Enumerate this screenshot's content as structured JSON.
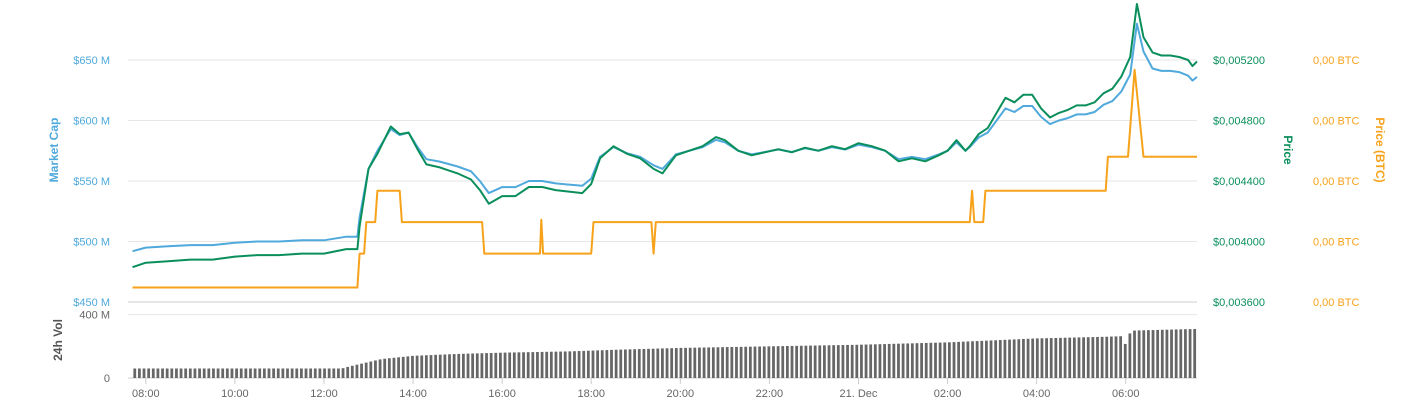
{
  "colors": {
    "market_cap": "#4fa9dc",
    "price_usd": "#0a8f5c",
    "price_btc": "#f7a21b",
    "volume": "#666666",
    "grid": "#e6e6e6",
    "tick_text": "#666666"
  },
  "chart_data": {
    "type": "line",
    "x_axis": {
      "ticks": [
        "08:00",
        "10:00",
        "12:00",
        "14:00",
        "16:00",
        "18:00",
        "20:00",
        "22:00",
        "21. Dec",
        "02:00",
        "04:00",
        "06:00"
      ],
      "tick_hours": [
        8,
        10,
        12,
        14,
        16,
        18,
        20,
        22,
        24,
        26,
        28,
        30
      ],
      "range_hours": [
        7.6,
        31.6
      ]
    },
    "axes": {
      "market_cap": {
        "title": "Market Cap",
        "ticks": [
          "$450 M",
          "$500 M",
          "$550 M",
          "$600 M",
          "$650 M"
        ],
        "tick_values": [
          450,
          500,
          550,
          600,
          650
        ],
        "range": [
          450,
          650
        ]
      },
      "price_usd": {
        "title": "Price",
        "ticks": [
          "$0,003600",
          "$0,004000",
          "$0,004400",
          "$0,004800",
          "$0,005200"
        ],
        "tick_values": [
          0.0036,
          0.004,
          0.0044,
          0.0048,
          0.0052
        ],
        "range": [
          0.0036,
          0.0052
        ]
      },
      "price_btc": {
        "title": "Price (BTC)",
        "ticks": [
          "0,00 BTC",
          "0,00 BTC",
          "0,00 BTC",
          "0,00 BTC",
          "0,00 BTC"
        ],
        "range": [
          0,
          5
        ]
      },
      "volume": {
        "title": "24h Vol",
        "ticks": [
          "0",
          "400 M"
        ],
        "tick_values": [
          0,
          400
        ],
        "range": [
          0,
          600
        ]
      }
    },
    "series": [
      {
        "key": "market_cap",
        "axis": "market_cap",
        "points": [
          [
            7.7,
            492
          ],
          [
            8.0,
            495
          ],
          [
            8.5,
            496
          ],
          [
            9.0,
            497
          ],
          [
            9.5,
            497
          ],
          [
            10.0,
            499
          ],
          [
            10.5,
            500
          ],
          [
            11.0,
            500
          ],
          [
            11.5,
            501
          ],
          [
            12.0,
            501
          ],
          [
            12.5,
            504
          ],
          [
            12.75,
            504
          ],
          [
            12.8,
            520
          ],
          [
            13.0,
            560
          ],
          [
            13.2,
            575
          ],
          [
            13.5,
            593
          ],
          [
            13.7,
            588
          ],
          [
            13.9,
            590
          ],
          [
            14.1,
            578
          ],
          [
            14.3,
            568
          ],
          [
            14.6,
            566
          ],
          [
            15.0,
            562
          ],
          [
            15.3,
            558
          ],
          [
            15.5,
            550
          ],
          [
            15.7,
            540
          ],
          [
            16.0,
            545
          ],
          [
            16.3,
            545
          ],
          [
            16.6,
            550
          ],
          [
            16.9,
            550
          ],
          [
            17.2,
            548
          ],
          [
            17.5,
            547
          ],
          [
            17.8,
            546
          ],
          [
            18.0,
            552
          ],
          [
            18.2,
            570
          ],
          [
            18.5,
            578
          ],
          [
            18.8,
            573
          ],
          [
            19.1,
            570
          ],
          [
            19.4,
            563
          ],
          [
            19.6,
            560
          ],
          [
            19.9,
            572
          ],
          [
            20.2,
            575
          ],
          [
            20.5,
            578
          ],
          [
            20.8,
            584
          ],
          [
            21.0,
            582
          ],
          [
            21.3,
            575
          ],
          [
            21.6,
            572
          ],
          [
            21.9,
            574
          ],
          [
            22.2,
            576
          ],
          [
            22.5,
            574
          ],
          [
            22.8,
            577
          ],
          [
            23.1,
            575
          ],
          [
            23.4,
            578
          ],
          [
            23.7,
            576
          ],
          [
            24.0,
            580
          ],
          [
            24.3,
            578
          ],
          [
            24.6,
            575
          ],
          [
            24.9,
            568
          ],
          [
            25.2,
            570
          ],
          [
            25.5,
            568
          ],
          [
            25.8,
            572
          ],
          [
            26.0,
            575
          ],
          [
            26.2,
            582
          ],
          [
            26.4,
            575
          ],
          [
            26.5,
            578
          ],
          [
            26.7,
            586
          ],
          [
            26.9,
            590
          ],
          [
            27.1,
            600
          ],
          [
            27.3,
            610
          ],
          [
            27.5,
            607
          ],
          [
            27.7,
            612
          ],
          [
            27.9,
            612
          ],
          [
            28.1,
            603
          ],
          [
            28.3,
            597
          ],
          [
            28.5,
            600
          ],
          [
            28.7,
            602
          ],
          [
            28.9,
            605
          ],
          [
            29.1,
            605
          ],
          [
            29.3,
            607
          ],
          [
            29.5,
            613
          ],
          [
            29.7,
            616
          ],
          [
            29.9,
            624
          ],
          [
            30.1,
            638
          ],
          [
            30.25,
            680
          ],
          [
            30.4,
            657
          ],
          [
            30.6,
            643
          ],
          [
            30.8,
            641
          ],
          [
            31.0,
            641
          ],
          [
            31.2,
            640
          ],
          [
            31.4,
            637
          ],
          [
            31.5,
            633
          ],
          [
            31.6,
            636
          ]
        ]
      },
      {
        "key": "price_usd",
        "axis": "price_usd",
        "points": [
          [
            7.7,
            0.00383
          ],
          [
            8.0,
            0.00386
          ],
          [
            8.5,
            0.00387
          ],
          [
            9.0,
            0.00388
          ],
          [
            9.5,
            0.00388
          ],
          [
            10.0,
            0.0039
          ],
          [
            10.5,
            0.00391
          ],
          [
            11.0,
            0.00391
          ],
          [
            11.5,
            0.00392
          ],
          [
            12.0,
            0.00392
          ],
          [
            12.5,
            0.00395
          ],
          [
            12.75,
            0.00395
          ],
          [
            12.8,
            0.0041
          ],
          [
            13.0,
            0.00448
          ],
          [
            13.2,
            0.00458
          ],
          [
            13.5,
            0.00476
          ],
          [
            13.7,
            0.00471
          ],
          [
            13.9,
            0.00472
          ],
          [
            14.1,
            0.00461
          ],
          [
            14.3,
            0.00451
          ],
          [
            14.6,
            0.00449
          ],
          [
            15.0,
            0.00445
          ],
          [
            15.3,
            0.00441
          ],
          [
            15.5,
            0.00434
          ],
          [
            15.7,
            0.00425
          ],
          [
            16.0,
            0.0043
          ],
          [
            16.3,
            0.0043
          ],
          [
            16.6,
            0.00436
          ],
          [
            16.9,
            0.00436
          ],
          [
            17.2,
            0.00434
          ],
          [
            17.5,
            0.00433
          ],
          [
            17.8,
            0.00432
          ],
          [
            18.0,
            0.00438
          ],
          [
            18.2,
            0.00455
          ],
          [
            18.5,
            0.00463
          ],
          [
            18.8,
            0.00458
          ],
          [
            19.1,
            0.00455
          ],
          [
            19.4,
            0.00448
          ],
          [
            19.6,
            0.00445
          ],
          [
            19.9,
            0.00457
          ],
          [
            20.2,
            0.0046
          ],
          [
            20.5,
            0.00463
          ],
          [
            20.8,
            0.00469
          ],
          [
            21.0,
            0.00467
          ],
          [
            21.3,
            0.0046
          ],
          [
            21.6,
            0.00457
          ],
          [
            21.9,
            0.00459
          ],
          [
            22.2,
            0.00461
          ],
          [
            22.5,
            0.00459
          ],
          [
            22.8,
            0.00462
          ],
          [
            23.1,
            0.0046
          ],
          [
            23.4,
            0.00463
          ],
          [
            23.7,
            0.00461
          ],
          [
            24.0,
            0.00465
          ],
          [
            24.3,
            0.00463
          ],
          [
            24.6,
            0.0046
          ],
          [
            24.9,
            0.00453
          ],
          [
            25.2,
            0.00455
          ],
          [
            25.5,
            0.00453
          ],
          [
            25.8,
            0.00457
          ],
          [
            26.0,
            0.0046
          ],
          [
            26.2,
            0.00467
          ],
          [
            26.4,
            0.0046
          ],
          [
            26.5,
            0.00463
          ],
          [
            26.7,
            0.00471
          ],
          [
            26.9,
            0.00475
          ],
          [
            27.1,
            0.00485
          ],
          [
            27.3,
            0.00495
          ],
          [
            27.5,
            0.00492
          ],
          [
            27.7,
            0.00497
          ],
          [
            27.9,
            0.00497
          ],
          [
            28.1,
            0.00488
          ],
          [
            28.3,
            0.00482
          ],
          [
            28.5,
            0.00485
          ],
          [
            28.7,
            0.00487
          ],
          [
            28.9,
            0.0049
          ],
          [
            29.1,
            0.0049
          ],
          [
            29.3,
            0.00492
          ],
          [
            29.5,
            0.00498
          ],
          [
            29.7,
            0.00501
          ],
          [
            29.9,
            0.00509
          ],
          [
            30.1,
            0.00522
          ],
          [
            30.25,
            0.00557
          ],
          [
            30.4,
            0.00535
          ],
          [
            30.6,
            0.00525
          ],
          [
            30.8,
            0.00523
          ],
          [
            31.0,
            0.00523
          ],
          [
            31.2,
            0.00522
          ],
          [
            31.4,
            0.0052
          ],
          [
            31.5,
            0.00516
          ],
          [
            31.6,
            0.00519
          ]
        ]
      },
      {
        "key": "price_btc",
        "axis": "price_btc",
        "step": true,
        "points": [
          [
            7.7,
            0.3
          ],
          [
            12.75,
            0.3
          ],
          [
            12.8,
            1.0
          ],
          [
            12.9,
            1.0
          ],
          [
            12.95,
            1.65
          ],
          [
            13.15,
            1.65
          ],
          [
            13.2,
            2.3
          ],
          [
            13.7,
            2.3
          ],
          [
            13.75,
            1.65
          ],
          [
            15.55,
            1.65
          ],
          [
            15.6,
            1.0
          ],
          [
            16.85,
            1.0
          ],
          [
            16.88,
            1.7
          ],
          [
            16.92,
            1.0
          ],
          [
            18.0,
            1.0
          ],
          [
            18.05,
            1.65
          ],
          [
            19.35,
            1.65
          ],
          [
            19.4,
            1.0
          ],
          [
            19.45,
            1.65
          ],
          [
            26.5,
            1.65
          ],
          [
            26.55,
            2.3
          ],
          [
            26.6,
            1.65
          ],
          [
            26.8,
            1.65
          ],
          [
            26.85,
            2.3
          ],
          [
            29.55,
            2.3
          ],
          [
            29.6,
            3.0
          ],
          [
            30.05,
            3.0
          ],
          [
            30.2,
            4.8
          ],
          [
            30.4,
            3.0
          ],
          [
            31.6,
            3.0
          ]
        ]
      }
    ],
    "volume_bars": {
      "axis": "volume",
      "start_hour": 7.7,
      "end_hour": 31.6,
      "count": 230,
      "segments": [
        [
          7.7,
          60
        ],
        [
          12.4,
          60
        ],
        [
          12.6,
          75
        ],
        [
          13.3,
          120
        ],
        [
          14.0,
          140
        ],
        [
          15.0,
          152
        ],
        [
          16.0,
          160
        ],
        [
          17.5,
          168
        ],
        [
          18.5,
          178
        ],
        [
          20.0,
          190
        ],
        [
          22.0,
          200
        ],
        [
          24.0,
          210
        ],
        [
          26.0,
          225
        ],
        [
          28.0,
          250
        ],
        [
          29.5,
          260
        ],
        [
          30.0,
          265
        ],
        [
          30.2,
          300
        ],
        [
          31.6,
          310
        ]
      ],
      "dips": [
        [
          30.0,
          215
        ]
      ]
    }
  }
}
